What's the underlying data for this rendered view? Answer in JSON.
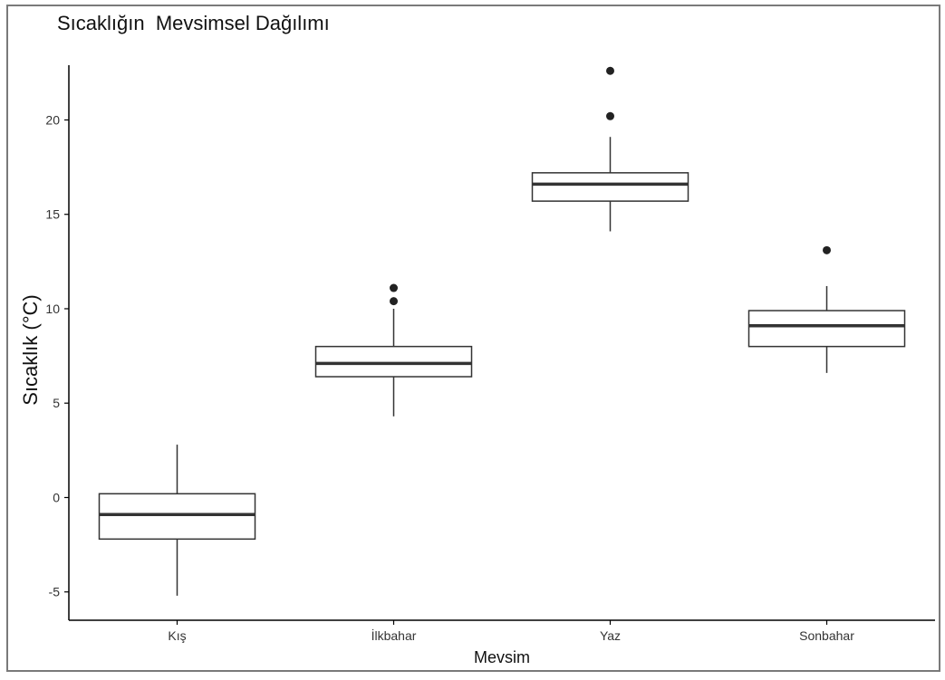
{
  "chart_data": {
    "type": "box",
    "title": "Sıcaklığın  Mevsimsel Dağılımı",
    "xlabel": "Mevsim",
    "ylabel": "Sıcaklık  (°C)",
    "ylim": [
      -6.5,
      22.9
    ],
    "yticks": [
      -5,
      0,
      5,
      10,
      15,
      20
    ],
    "ytick_labels": [
      "-5",
      "0",
      "5",
      "10",
      "15",
      "20"
    ],
    "categories": [
      "Kış",
      "İlkbahar",
      "Yaz",
      "Sonbahar"
    ],
    "grid": false,
    "boxes": [
      {
        "category": "Kış",
        "whisker_low": -5.2,
        "q1": -2.2,
        "median": -0.9,
        "q3": 0.2,
        "whisker_high": 2.8,
        "outliers": []
      },
      {
        "category": "İlkbahar",
        "whisker_low": 4.3,
        "q1": 6.4,
        "median": 7.1,
        "q3": 8.0,
        "whisker_high": 10.0,
        "outliers": [
          10.4,
          11.1
        ]
      },
      {
        "category": "Yaz",
        "whisker_low": 14.1,
        "q1": 15.7,
        "median": 16.6,
        "q3": 17.2,
        "whisker_high": 19.1,
        "outliers": [
          20.2,
          22.6
        ]
      },
      {
        "category": "Sonbahar",
        "whisker_low": 6.6,
        "q1": 8.0,
        "median": 9.1,
        "q3": 9.9,
        "whisker_high": 11.2,
        "outliers": [
          13.1
        ]
      }
    ],
    "colors": {
      "box_fill": "#ffffff",
      "line": "#333333",
      "median": "#333333",
      "outlier": "#222222"
    }
  }
}
